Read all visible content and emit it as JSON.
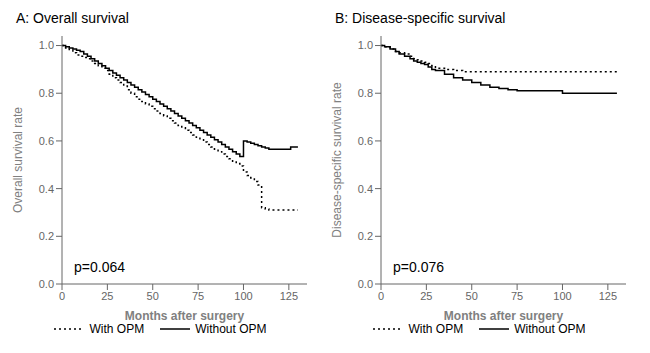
{
  "chart_data": [
    {
      "type": "step",
      "title": "A: Overall survival",
      "x_label": "Months after surgery",
      "y_label": "Overall survival rate",
      "annotation": "p=0.064",
      "xlim": [
        0,
        135
      ],
      "xticks": [
        0,
        25,
        50,
        75,
        100,
        125
      ],
      "ylim": [
        0.0,
        1.04
      ],
      "yticks": [
        {
          "value": 0.0,
          "label": "0.0"
        },
        0.2,
        0.4,
        0.6,
        0.8,
        {
          "value": 1.0,
          "label": "1.0"
        }
      ],
      "legend": "bottom",
      "x": [
        0,
        2,
        4,
        6,
        8,
        10,
        12,
        14,
        16,
        18,
        20,
        22,
        24,
        26,
        28,
        30,
        32,
        34,
        36,
        38,
        40,
        42,
        44,
        46,
        48,
        50,
        52,
        54,
        56,
        58,
        60,
        62,
        64,
        66,
        68,
        70,
        72,
        74,
        76,
        78,
        80,
        82,
        84,
        86,
        88,
        90,
        92,
        94,
        96,
        98,
        100,
        102,
        104,
        106,
        108,
        110,
        112,
        114,
        116,
        118,
        120,
        122,
        124,
        126,
        128,
        130
      ],
      "series": [
        {
          "name": "With OPM",
          "color": "#000000",
          "line_style": "dotted",
          "values": [
            1.0,
            0.99,
            0.98,
            0.97,
            0.96,
            0.955,
            0.95,
            0.945,
            0.935,
            0.925,
            0.915,
            0.905,
            0.895,
            0.88,
            0.865,
            0.855,
            0.845,
            0.83,
            0.815,
            0.8,
            0.785,
            0.775,
            0.765,
            0.755,
            0.745,
            0.735,
            0.725,
            0.715,
            0.705,
            0.695,
            0.685,
            0.675,
            0.665,
            0.655,
            0.645,
            0.635,
            0.625,
            0.615,
            0.605,
            0.595,
            0.585,
            0.575,
            0.565,
            0.555,
            0.545,
            0.535,
            0.525,
            0.515,
            0.505,
            0.495,
            0.47,
            0.455,
            0.445,
            0.43,
            0.415,
            0.32,
            0.315,
            0.31,
            0.31,
            0.31,
            0.31,
            0.31,
            0.31,
            0.31,
            0.31,
            0.31
          ]
        },
        {
          "name": "Without OPM",
          "color": "#000000",
          "line_style": "solid",
          "values": [
            1.0,
            0.995,
            0.99,
            0.985,
            0.98,
            0.975,
            0.965,
            0.955,
            0.945,
            0.935,
            0.925,
            0.915,
            0.905,
            0.895,
            0.885,
            0.875,
            0.865,
            0.855,
            0.845,
            0.835,
            0.825,
            0.815,
            0.805,
            0.795,
            0.785,
            0.775,
            0.765,
            0.755,
            0.745,
            0.735,
            0.725,
            0.715,
            0.705,
            0.695,
            0.685,
            0.675,
            0.665,
            0.655,
            0.645,
            0.635,
            0.625,
            0.615,
            0.605,
            0.595,
            0.585,
            0.575,
            0.565,
            0.555,
            0.545,
            0.535,
            0.6,
            0.595,
            0.59,
            0.585,
            0.58,
            0.575,
            0.57,
            0.565,
            0.565,
            0.565,
            0.565,
            0.565,
            0.565,
            0.575,
            0.575,
            0.575
          ]
        }
      ]
    },
    {
      "type": "step",
      "title": "B: Disease-specific survival",
      "x_label": "Months after surgery",
      "y_label": "Disease-specific survival rate",
      "annotation": "p=0.076",
      "xlim": [
        0,
        135
      ],
      "xticks": [
        0,
        25,
        50,
        75,
        100,
        125
      ],
      "ylim": [
        0.0,
        1.04
      ],
      "yticks": [
        {
          "value": 0.0,
          "label": "0.0"
        },
        0.2,
        0.4,
        0.6,
        0.8,
        {
          "value": 1.0,
          "label": "1.0"
        }
      ],
      "legend": "bottom",
      "x": [
        0,
        2,
        5,
        8,
        10,
        13,
        16,
        18,
        20,
        22,
        24,
        26,
        28,
        30,
        35,
        40,
        45,
        50,
        55,
        60,
        65,
        70,
        75,
        80,
        85,
        90,
        95,
        100,
        105,
        110,
        115,
        120,
        125,
        130
      ],
      "series": [
        {
          "name": "With OPM",
          "color": "#000000",
          "line_style": "dotted",
          "values": [
            1.0,
            0.995,
            0.985,
            0.975,
            0.97,
            0.965,
            0.955,
            0.945,
            0.94,
            0.935,
            0.93,
            0.925,
            0.915,
            0.905,
            0.9,
            0.895,
            0.89,
            0.89,
            0.89,
            0.89,
            0.89,
            0.89,
            0.89,
            0.89,
            0.89,
            0.89,
            0.89,
            0.89,
            0.89,
            0.89,
            0.89,
            0.89,
            0.89,
            0.89
          ]
        },
        {
          "name": "Without OPM",
          "color": "#000000",
          "line_style": "solid",
          "values": [
            1.0,
            0.995,
            0.985,
            0.975,
            0.965,
            0.955,
            0.945,
            0.935,
            0.93,
            0.925,
            0.92,
            0.91,
            0.9,
            0.895,
            0.88,
            0.865,
            0.855,
            0.845,
            0.835,
            0.825,
            0.82,
            0.815,
            0.81,
            0.81,
            0.81,
            0.81,
            0.81,
            0.8,
            0.8,
            0.8,
            0.8,
            0.8,
            0.8,
            0.8
          ]
        }
      ]
    }
  ]
}
